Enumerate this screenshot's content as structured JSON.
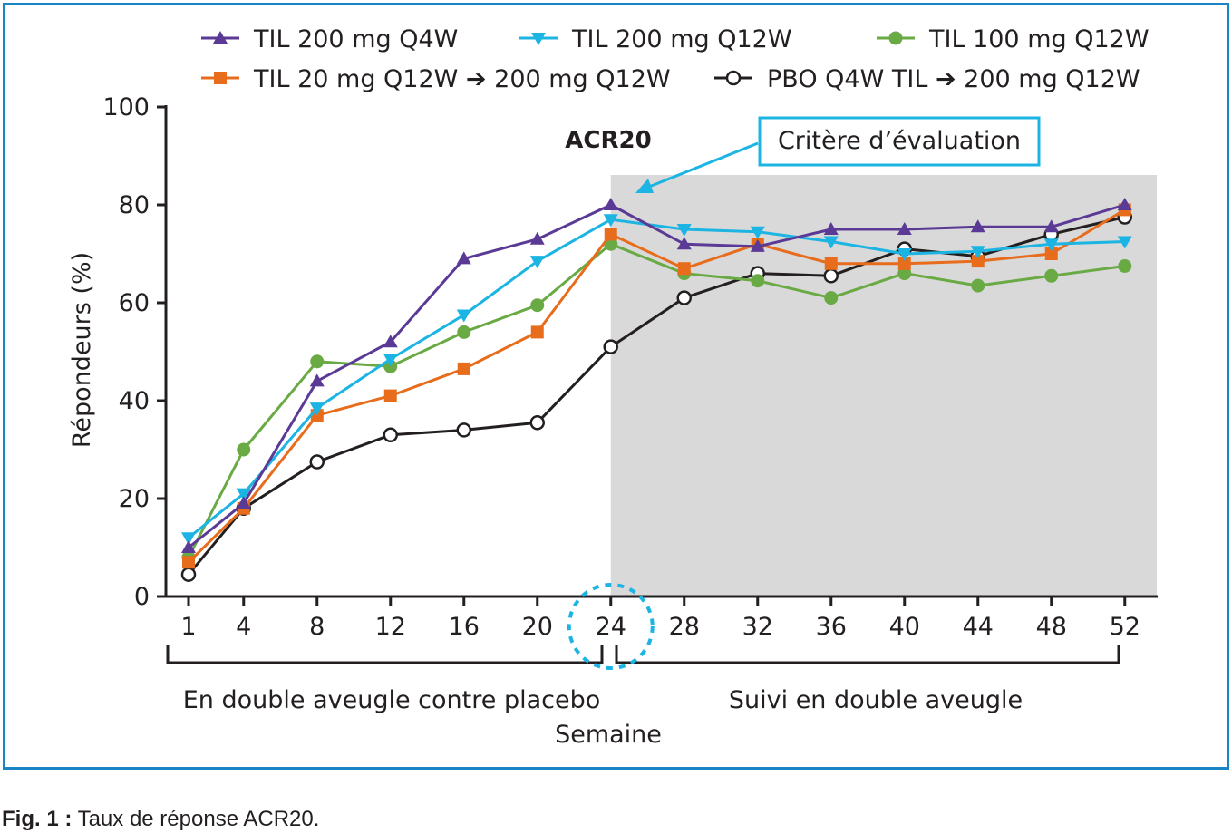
{
  "caption": {
    "prefix": "Fig. 1 :",
    "text": "Taux de réponse ACR20."
  },
  "colors": {
    "frame": "#1a84c4",
    "shaded_region": "#d9d9d9",
    "callout": "#1cb4e3"
  },
  "chart_data": {
    "type": "line",
    "title": "ACR20",
    "callout": "Critère d’évaluation",
    "xlabel": "Semaine",
    "ylabel": "Répondeurs (%)",
    "ylim": [
      0,
      100
    ],
    "y_ticks": [
      0,
      20,
      40,
      60,
      80,
      100
    ],
    "x": [
      1,
      4,
      8,
      12,
      16,
      20,
      24,
      28,
      32,
      36,
      40,
      44,
      48,
      52
    ],
    "x_tick_labels": [
      "1",
      "4",
      "8",
      "12",
      "16",
      "20",
      "24",
      "28",
      "32",
      "36",
      "40",
      "44",
      "48",
      "52"
    ],
    "shaded_x_range": [
      24,
      53
    ],
    "periods": [
      {
        "label": "En double aveugle contre placebo",
        "x_range": [
          1,
          24
        ]
      },
      {
        "label": "Suivi en double aveugle",
        "x_range": [
          24,
          52
        ]
      }
    ],
    "highlighted_x": 24,
    "legend_position": "top",
    "grid": false,
    "series": [
      {
        "name": "TIL 200 mg Q4W",
        "color": "#5b3a96",
        "marker": "triangle-up",
        "values": [
          10,
          19,
          44,
          52,
          69,
          73,
          80,
          72,
          71.5,
          75,
          75,
          75.5,
          75.5,
          80
        ]
      },
      {
        "name": "TIL 200 mg Q12W",
        "color": "#1cb4e3",
        "marker": "triangle-down",
        "values": [
          12,
          21,
          38.5,
          48.5,
          57.5,
          68.5,
          77,
          75,
          74.5,
          72.5,
          70,
          70.5,
          72,
          72.5
        ]
      },
      {
        "name": "TIL 100 mg Q12W",
        "color": "#6aaa45",
        "marker": "circle",
        "values": [
          8,
          30,
          48,
          47,
          54,
          59.5,
          72,
          66,
          64.5,
          61,
          66,
          63.5,
          65.5,
          67.5
        ]
      },
      {
        "name": "TIL 20 mg Q12W ➔ 200 mg Q12W",
        "color": "#e76c1c",
        "marker": "square",
        "values": [
          7,
          18,
          37,
          41,
          46.5,
          54,
          74,
          67,
          72,
          68,
          68,
          68.5,
          70,
          79
        ]
      },
      {
        "name": "PBO Q4W TIL ➔ 200 mg Q12W",
        "color": "#231f20",
        "marker": "open-circle",
        "values": [
          4.5,
          18,
          27.5,
          33,
          34,
          35.5,
          51,
          61,
          66,
          65.5,
          71,
          69.5,
          74,
          77.5
        ]
      }
    ]
  }
}
